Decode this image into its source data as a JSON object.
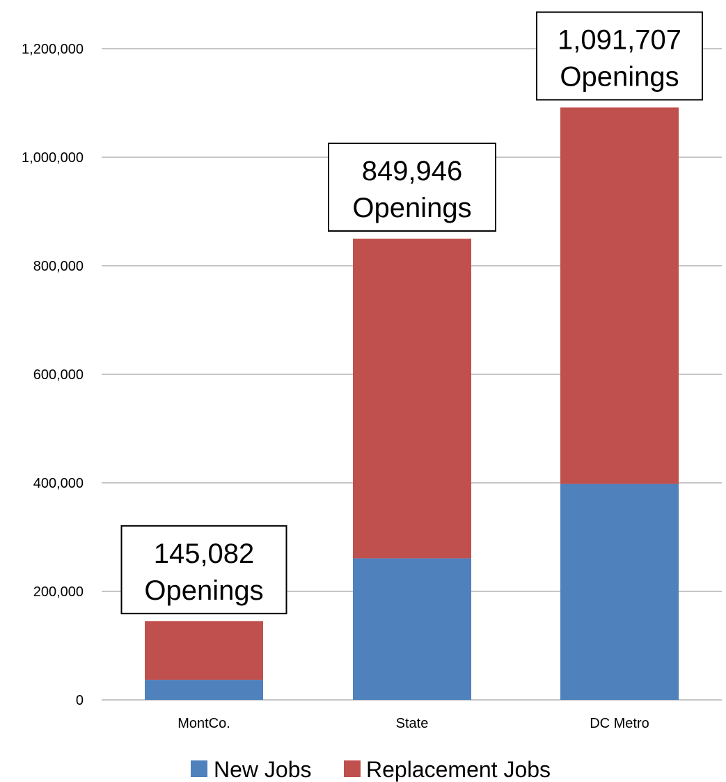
{
  "chart_data": {
    "type": "bar",
    "stacked": true,
    "categories": [
      "MontCo.",
      "State",
      "DC Metro"
    ],
    "series": [
      {
        "name": "New Jobs",
        "color": "#4F81BD",
        "values": [
          37000,
          261000,
          398000
        ]
      },
      {
        "name": "Replacement Jobs",
        "color": "#C0504D",
        "values": [
          108082,
          588946,
          693707
        ]
      }
    ],
    "totals_labels": [
      [
        "145,082",
        "Openings"
      ],
      [
        "849,946",
        "Openings"
      ],
      [
        "1,091,707",
        "Openings"
      ]
    ],
    "ylim": [
      0,
      1200000
    ],
    "yticks": [
      0,
      200000,
      400000,
      600000,
      800000,
      1000000,
      1200000
    ],
    "ytick_labels": [
      "0",
      "200,000",
      "400,000",
      "600,000",
      "800,000",
      "1,000,000",
      "1,200,000"
    ],
    "grid": true,
    "legend_position": "bottom"
  }
}
